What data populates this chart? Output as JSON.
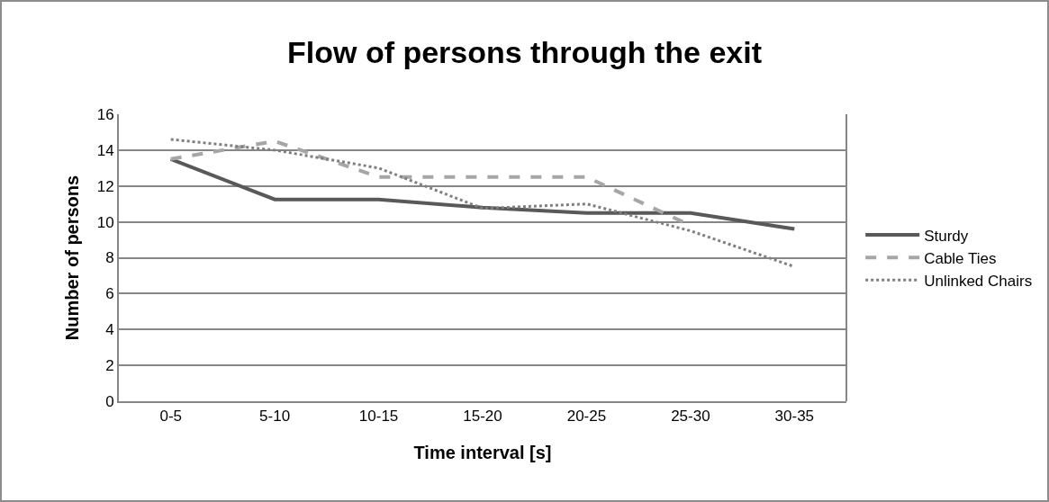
{
  "chart_data": {
    "type": "line",
    "title": "Flow of persons through the exit",
    "xlabel": "Time interval [s]",
    "ylabel": "Number of persons",
    "categories": [
      "0-5",
      "5-10",
      "10-15",
      "15-20",
      "20-25",
      "25-30",
      "30-35"
    ],
    "series": [
      {
        "name": "Sturdy",
        "color": "#595959",
        "line_style": "solid",
        "values": [
          13.5,
          11.25,
          11.25,
          10.8,
          10.5,
          10.5,
          9.6
        ]
      },
      {
        "name": "Cable Ties",
        "color": "#a6a6a6",
        "line_style": "dashed",
        "values": [
          13.5,
          14.5,
          12.5,
          12.5,
          12.5,
          9.8,
          null
        ]
      },
      {
        "name": "Unlinked Chairs",
        "color": "#7f7f7f",
        "line_style": "dotted",
        "values": [
          14.6,
          14,
          13,
          10.75,
          11,
          9.5,
          7.5
        ]
      }
    ],
    "ylim": [
      0,
      16
    ],
    "yticks": [
      0,
      2,
      4,
      6,
      8,
      10,
      12,
      14,
      16
    ],
    "grid": "y",
    "legend": "right",
    "marker": "none"
  }
}
